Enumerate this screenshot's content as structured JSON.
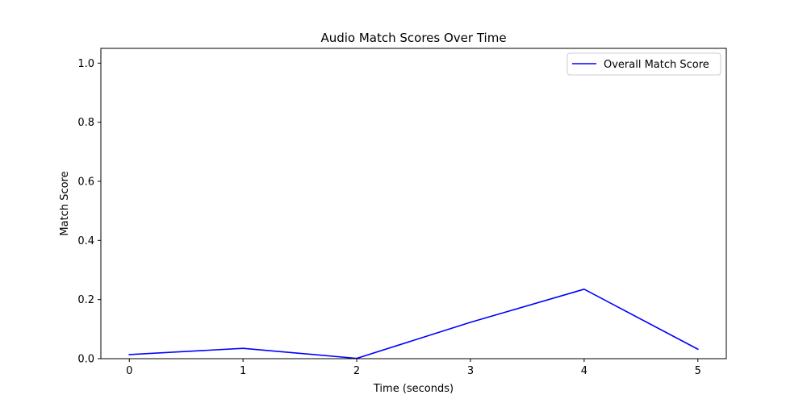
{
  "chart_data": {
    "type": "line",
    "title": "Audio Match Scores Over Time",
    "xlabel": "Time (seconds)",
    "ylabel": "Match Score",
    "xlim": [
      -0.25,
      5.25
    ],
    "ylim": [
      0.0,
      1.05
    ],
    "xticks": [
      0,
      1,
      2,
      3,
      4,
      5
    ],
    "yticks": [
      0.0,
      0.2,
      0.4,
      0.6,
      0.8,
      1.0
    ],
    "xtick_labels": [
      "0",
      "1",
      "2",
      "3",
      "4",
      "5"
    ],
    "ytick_labels": [
      "0.0",
      "0.2",
      "0.4",
      "0.6",
      "0.8",
      "1.0"
    ],
    "grid": false,
    "legend_position": "top-right",
    "series": [
      {
        "name": "Overall Match Score",
        "color": "#0000ff",
        "x": [
          0,
          1,
          2,
          3,
          4,
          5
        ],
        "y": [
          0.014,
          0.035,
          0.001,
          0.123,
          0.235,
          0.032
        ]
      }
    ]
  }
}
